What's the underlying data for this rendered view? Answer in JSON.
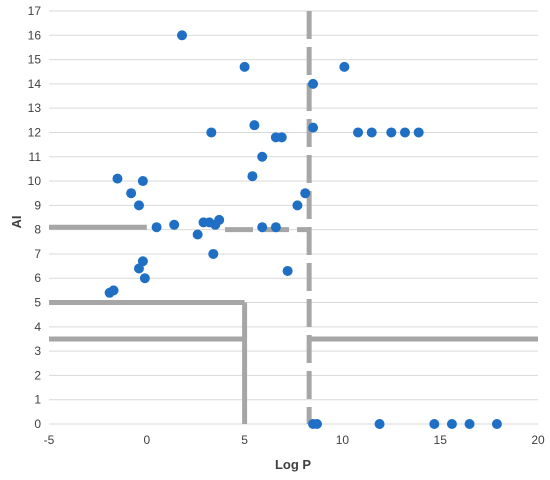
{
  "chart_data": {
    "type": "scatter",
    "title": "",
    "xlabel": "Log P",
    "ylabel": "AI",
    "xlim": [
      -5,
      20
    ],
    "ylim": [
      0,
      17
    ],
    "xticks": [
      -5,
      0,
      5,
      10,
      15,
      20
    ],
    "yticks": [
      0,
      1,
      2,
      3,
      4,
      5,
      6,
      7,
      8,
      9,
      10,
      11,
      12,
      13,
      14,
      15,
      16,
      17
    ],
    "xtick_labels": [
      "-5",
      "0",
      "5",
      "10",
      "15",
      "20"
    ],
    "ytick_labels": [
      "0",
      "1",
      "2",
      "3",
      "4",
      "5",
      "6",
      "7",
      "8",
      "9",
      "10",
      "11",
      "12",
      "13",
      "14",
      "15",
      "16",
      "17"
    ],
    "grid": "horizontal",
    "legend": "none",
    "colors": {
      "points": "#1f6fc5",
      "lines": "#a6a6a6",
      "grid": "#d9d9d9"
    },
    "points": [
      {
        "x": 1.8,
        "y": 16.0
      },
      {
        "x": 5.0,
        "y": 14.7
      },
      {
        "x": 10.1,
        "y": 14.7
      },
      {
        "x": 8.5,
        "y": 14.0
      },
      {
        "x": 5.5,
        "y": 12.3
      },
      {
        "x": 8.5,
        "y": 12.2
      },
      {
        "x": 3.3,
        "y": 12.0
      },
      {
        "x": 6.6,
        "y": 11.8
      },
      {
        "x": 6.9,
        "y": 11.8
      },
      {
        "x": 10.8,
        "y": 12.0
      },
      {
        "x": 11.5,
        "y": 12.0
      },
      {
        "x": 12.5,
        "y": 12.0
      },
      {
        "x": 13.2,
        "y": 12.0
      },
      {
        "x": 13.9,
        "y": 12.0
      },
      {
        "x": 5.9,
        "y": 11.0
      },
      {
        "x": -1.5,
        "y": 10.1
      },
      {
        "x": -0.2,
        "y": 10.0
      },
      {
        "x": 5.4,
        "y": 10.2
      },
      {
        "x": -0.8,
        "y": 9.5
      },
      {
        "x": 8.1,
        "y": 9.5
      },
      {
        "x": -0.4,
        "y": 9.0
      },
      {
        "x": 7.7,
        "y": 9.0
      },
      {
        "x": 0.5,
        "y": 8.1
      },
      {
        "x": 1.4,
        "y": 8.2
      },
      {
        "x": 2.9,
        "y": 8.3
      },
      {
        "x": 3.2,
        "y": 8.3
      },
      {
        "x": 3.5,
        "y": 8.2
      },
      {
        "x": 3.7,
        "y": 8.4
      },
      {
        "x": 2.6,
        "y": 7.8
      },
      {
        "x": 5.9,
        "y": 8.1
      },
      {
        "x": 6.6,
        "y": 8.1
      },
      {
        "x": 3.4,
        "y": 7.0
      },
      {
        "x": 7.2,
        "y": 6.3
      },
      {
        "x": -0.2,
        "y": 6.7
      },
      {
        "x": -0.4,
        "y": 6.4
      },
      {
        "x": -0.1,
        "y": 6.0
      },
      {
        "x": -1.9,
        "y": 5.4
      },
      {
        "x": -1.7,
        "y": 5.5
      },
      {
        "x": 8.5,
        "y": 0.0
      },
      {
        "x": 8.7,
        "y": 0.0
      },
      {
        "x": 11.9,
        "y": 0.0
      },
      {
        "x": 14.7,
        "y": 0.0
      },
      {
        "x": 15.6,
        "y": 0.0
      },
      {
        "x": 16.5,
        "y": 0.0
      },
      {
        "x": 17.9,
        "y": 0.0
      }
    ],
    "threshold_lines": [
      {
        "from": [
          -5,
          8.1
        ],
        "to": [
          0,
          8.1
        ],
        "dashed": false
      },
      {
        "from": [
          4,
          8.0
        ],
        "to": [
          8.2,
          8.0
        ],
        "dashed": true
      },
      {
        "from": [
          -5,
          5.0
        ],
        "to": [
          5,
          5.0
        ],
        "dashed": false
      },
      {
        "from": [
          -5,
          3.5
        ],
        "to": [
          5,
          3.5
        ],
        "dashed": false
      },
      {
        "from": [
          5,
          5.0
        ],
        "to": [
          5,
          0
        ],
        "dashed": false
      },
      {
        "from": [
          8.3,
          17
        ],
        "to": [
          8.3,
          0
        ],
        "dashed": true
      },
      {
        "from": [
          8.3,
          3.5
        ],
        "to": [
          20,
          3.5
        ],
        "dashed": false
      }
    ]
  }
}
